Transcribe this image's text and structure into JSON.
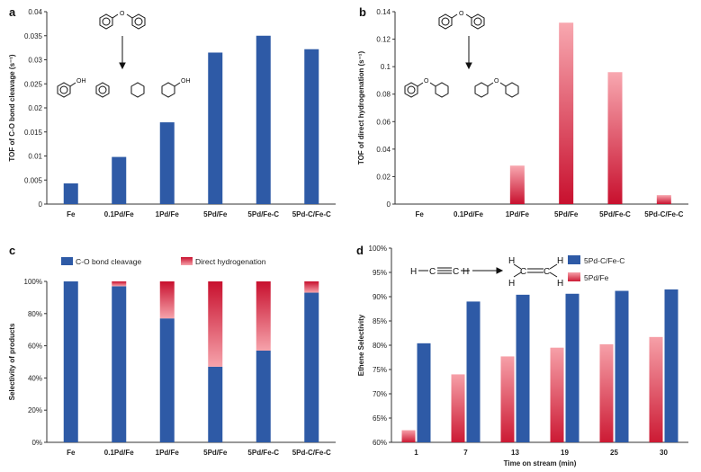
{
  "colors": {
    "blue": "#2e5aa6",
    "red_dark": "#c8102e",
    "red_light": "#f49aa4",
    "axis": "#333333"
  },
  "chart_data": [
    {
      "panel": "a",
      "type": "bar",
      "ylabel": "TOF of C-O bond cleavage (s⁻¹)",
      "categories": [
        "Fe",
        "0.1Pd/Fe",
        "1Pd/Fe",
        "5Pd/Fe",
        "5Pd/Fe-C",
        "5Pd-C/Fe-C"
      ],
      "values": [
        0.0043,
        0.0098,
        0.017,
        0.0315,
        0.035,
        0.0322
      ],
      "ylim": [
        0,
        0.04
      ],
      "yticks": [
        "0",
        "0.005",
        "0.01",
        "0.015",
        "0.02",
        "0.025",
        "0.03",
        "0.035",
        "0.04"
      ],
      "scheme_labels": [
        "O",
        "OH",
        "OH"
      ]
    },
    {
      "panel": "b",
      "type": "bar",
      "ylabel": "TOF of direct hydrogenation (s⁻¹)",
      "categories": [
        "Fe",
        "0.1Pd/Fe",
        "1Pd/Fe",
        "5Pd/Fe",
        "5Pd/Fe-C",
        "5Pd-C/Fe-C"
      ],
      "values": [
        0,
        0,
        0.028,
        0.132,
        0.096,
        0.0065
      ],
      "ylim": [
        0,
        0.14
      ],
      "yticks": [
        "0",
        "0.02",
        "0.04",
        "0.06",
        "0.08",
        "0.1",
        "0.12",
        "0.14"
      ],
      "scheme_labels": [
        "O",
        "O",
        "O"
      ]
    },
    {
      "panel": "c",
      "type": "bar",
      "stacked": true,
      "ylabel": "Selectivity of products",
      "categories": [
        "Fe",
        "0.1Pd/Fe",
        "1Pd/Fe",
        "5Pd/Fe",
        "5Pd/Fe-C",
        "5Pd-C/Fe-C"
      ],
      "series": [
        {
          "name": "C-O bond cleavage",
          "values": [
            100,
            97,
            77,
            47,
            57,
            93
          ]
        },
        {
          "name": "Direct hydrogenation",
          "values": [
            0,
            3,
            23,
            53,
            43,
            7
          ]
        }
      ],
      "ylim": [
        0,
        100
      ],
      "yticks": [
        "0%",
        "20%",
        "40%",
        "60%",
        "80%",
        "100%"
      ]
    },
    {
      "panel": "d",
      "type": "bar",
      "xlabel": "Time on stream (min)",
      "ylabel": "Ethene Selectivity",
      "categories": [
        "1",
        "7",
        "13",
        "19",
        "25",
        "30"
      ],
      "series": [
        {
          "name": "5Pd/Fe",
          "values": [
            62.5,
            74,
            77.7,
            79.5,
            80.2,
            81.7
          ]
        },
        {
          "name": "5Pd-C/Fe-C",
          "values": [
            80.4,
            89,
            90.4,
            90.6,
            91.2,
            91.5
          ]
        }
      ],
      "legend": [
        "5Pd-C/Fe-C",
        "5Pd/Fe"
      ],
      "ylim": [
        60,
        100
      ],
      "yticks": [
        "60%",
        "65%",
        "70%",
        "75%",
        "80%",
        "85%",
        "90%",
        "95%",
        "100%"
      ],
      "scheme_labels": [
        "H",
        "C",
        "C",
        "H",
        "H",
        "H",
        "C",
        "C",
        "H",
        "H"
      ]
    }
  ]
}
